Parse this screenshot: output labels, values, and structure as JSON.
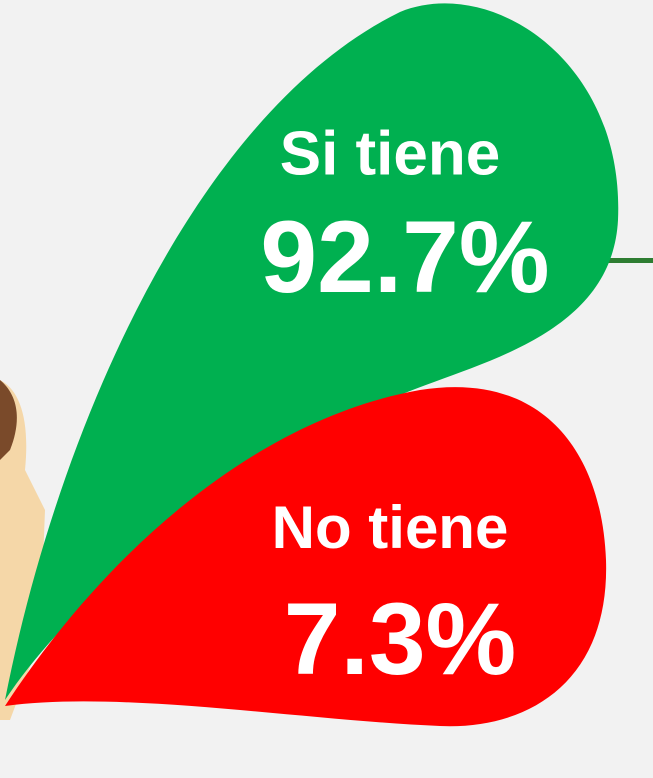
{
  "chart_data": {
    "type": "drop",
    "categories": [
      "Si tiene",
      "No tiene"
    ],
    "values": [
      92.7,
      7.3
    ],
    "value_labels": [
      "92.7%",
      "7.3%"
    ],
    "colors": [
      "#00b050",
      "#ff0000"
    ]
  }
}
